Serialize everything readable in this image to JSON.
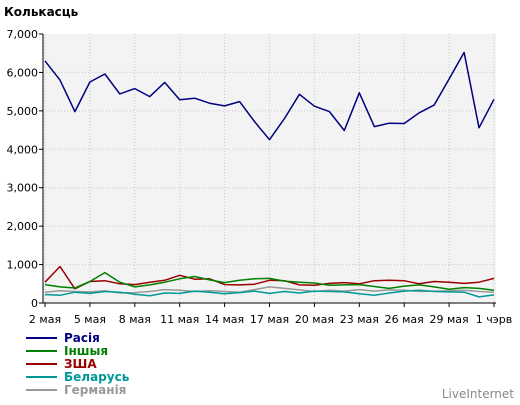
{
  "chart_data": {
    "type": "line",
    "title": "Колькасць",
    "xlabel": "",
    "ylabel": "",
    "ylim": [
      0,
      7000
    ],
    "yticks": [
      "0",
      "1,000",
      "2,000",
      "3,000",
      "4,000",
      "5,000",
      "6,000",
      "7,000"
    ],
    "xtick_labels": [
      "2 мая",
      "5 мая",
      "8 мая",
      "11 мая",
      "14 мая",
      "17 мая",
      "20 мая",
      "23 мая",
      "26 мая",
      "29 мая",
      "1 чэрв"
    ],
    "grid": true,
    "legend_position": "bottom-left",
    "series": [
      {
        "name": "Расія",
        "color": "#000080",
        "values": [
          6300,
          5800,
          4980,
          5750,
          5960,
          5440,
          5580,
          5370,
          5740,
          5290,
          5330,
          5200,
          5130,
          5240,
          4720,
          4250,
          4800,
          5430,
          5120,
          4980,
          4490,
          5470,
          4590,
          4680,
          4670,
          4950,
          5150,
          5830,
          6520,
          4560,
          5300
        ]
      },
      {
        "name": "Іншыя",
        "color": "#008000",
        "values": [
          480,
          420,
          390,
          560,
          790,
          540,
          420,
          470,
          540,
          630,
          690,
          600,
          530,
          590,
          630,
          640,
          570,
          540,
          520,
          460,
          470,
          480,
          430,
          380,
          440,
          470,
          420,
          360,
          400,
          380,
          330
        ]
      },
      {
        "name": "ЗША",
        "color": "#990000",
        "values": [
          540,
          950,
          370,
          560,
          580,
          500,
          480,
          540,
          590,
          720,
          620,
          630,
          480,
          470,
          490,
          590,
          580,
          470,
          460,
          510,
          530,
          500,
          580,
          590,
          580,
          500,
          560,
          540,
          510,
          540,
          640
        ]
      },
      {
        "name": "Беларусь",
        "color": "#009999",
        "values": [
          220,
          200,
          280,
          250,
          300,
          280,
          230,
          190,
          260,
          250,
          310,
          280,
          240,
          270,
          310,
          250,
          300,
          260,
          310,
          300,
          290,
          240,
          200,
          260,
          310,
          330,
          300,
          290,
          280,
          160,
          210
        ]
      },
      {
        "name": "Германія",
        "color": "#999999",
        "values": [
          280,
          320,
          300,
          290,
          320,
          260,
          270,
          300,
          350,
          330,
          300,
          320,
          300,
          280,
          350,
          420,
          380,
          340,
          300,
          330,
          310,
          350,
          310,
          340,
          330,
          300,
          310,
          320,
          330,
          300,
          280
        ]
      }
    ]
  },
  "brand_label": "LiveInternet"
}
